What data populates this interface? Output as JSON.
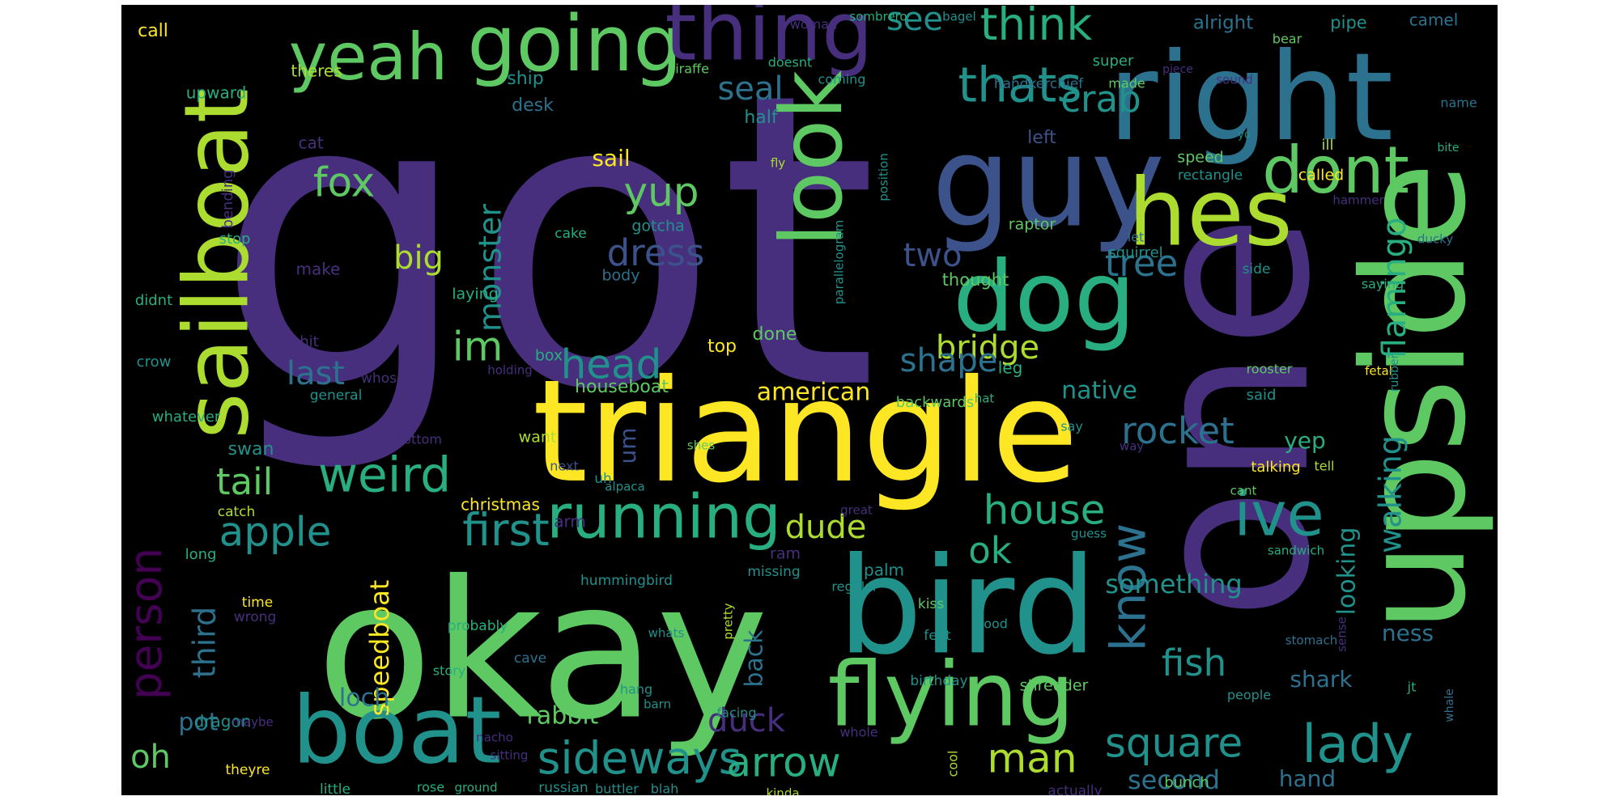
{
  "palette": {
    "background": "#000000",
    "purple": "#472f7d",
    "blue": "#3b528b",
    "steel": "#2c728e",
    "teal": "#21918c",
    "green": "#28ae80",
    "lime": "#5ec962",
    "yellowgreen": "#addc30",
    "yellow": "#fde725",
    "darkpurple": "#440154"
  },
  "words": [
    {
      "text": "got",
      "color": "purple"
    },
    {
      "text": "one",
      "color": "purple"
    },
    {
      "text": "triangle",
      "color": "yellow"
    },
    {
      "text": "okay",
      "color": "lime"
    },
    {
      "text": "right",
      "color": "steel"
    },
    {
      "text": "guy",
      "color": "blue"
    },
    {
      "text": "bird",
      "color": "teal"
    },
    {
      "text": "upside",
      "color": "lime"
    },
    {
      "text": "sailboat",
      "color": "yellowgreen"
    },
    {
      "text": "going",
      "color": "lime"
    },
    {
      "text": "thing",
      "color": "purple"
    },
    {
      "text": "yeah",
      "color": "lime"
    },
    {
      "text": "dog",
      "color": "green"
    },
    {
      "text": "hes",
      "color": "yellowgreen"
    },
    {
      "text": "look",
      "color": "lime"
    },
    {
      "text": "boat",
      "color": "teal"
    },
    {
      "text": "flying",
      "color": "lime"
    },
    {
      "text": "running",
      "color": "green"
    },
    {
      "text": "dont",
      "color": "lime"
    },
    {
      "text": "think",
      "color": "green"
    },
    {
      "text": "thats",
      "color": "teal"
    },
    {
      "text": "know",
      "color": "steel"
    },
    {
      "text": "lady",
      "color": "teal"
    },
    {
      "text": "person",
      "color": "darkpurple"
    },
    {
      "text": "ive",
      "color": "teal"
    },
    {
      "text": "weird",
      "color": "green"
    },
    {
      "text": "sideways",
      "color": "teal"
    },
    {
      "text": "first",
      "color": "teal"
    },
    {
      "text": "apple",
      "color": "teal"
    },
    {
      "text": "house",
      "color": "green"
    },
    {
      "text": "square",
      "color": "teal"
    },
    {
      "text": "arrow",
      "color": "green"
    },
    {
      "text": "man",
      "color": "yellowgreen"
    },
    {
      "text": "rocket",
      "color": "steel"
    },
    {
      "text": "head",
      "color": "teal"
    },
    {
      "text": "monster",
      "color": "teal"
    },
    {
      "text": "fox",
      "color": "lime"
    },
    {
      "text": "crab",
      "color": "teal"
    },
    {
      "text": "dress",
      "color": "blue"
    },
    {
      "text": "yup",
      "color": "lime"
    },
    {
      "text": "tree",
      "color": "steel"
    },
    {
      "text": "bridge",
      "color": "yellowgreen"
    },
    {
      "text": "shape",
      "color": "steel"
    },
    {
      "text": "flamingo",
      "color": "green"
    },
    {
      "text": "walking",
      "color": "teal"
    },
    {
      "text": "im",
      "color": "lime"
    },
    {
      "text": "big",
      "color": "yellowgreen"
    },
    {
      "text": "last",
      "color": "steel"
    },
    {
      "text": "tail",
      "color": "lime"
    },
    {
      "text": "seal",
      "color": "steel"
    },
    {
      "text": "see",
      "color": "teal"
    },
    {
      "text": "dude",
      "color": "yellowgreen"
    },
    {
      "text": "ok",
      "color": "green"
    },
    {
      "text": "fish",
      "color": "teal"
    },
    {
      "text": "duck",
      "color": "purple"
    },
    {
      "text": "two",
      "color": "blue"
    },
    {
      "text": "oh",
      "color": "lime"
    },
    {
      "text": "third",
      "color": "steel"
    },
    {
      "text": "speedboat",
      "color": "yellow"
    },
    {
      "text": "something",
      "color": "teal"
    },
    {
      "text": "second",
      "color": "steel"
    },
    {
      "text": "looking",
      "color": "teal"
    },
    {
      "text": "rabbit",
      "color": "lime"
    },
    {
      "text": "native",
      "color": "teal"
    },
    {
      "text": "american",
      "color": "yellow"
    },
    {
      "text": "sail",
      "color": "yellow"
    },
    {
      "text": "loch",
      "color": "steel"
    },
    {
      "text": "pot",
      "color": "steel"
    },
    {
      "text": "back",
      "color": "steel"
    },
    {
      "text": "um",
      "color": "blue"
    },
    {
      "text": "ness",
      "color": "steel"
    },
    {
      "text": "hand",
      "color": "steel"
    },
    {
      "text": "shark",
      "color": "steel"
    },
    {
      "text": "yep",
      "color": "green"
    },
    {
      "text": "houseboat",
      "color": "lime"
    },
    {
      "text": "christmas",
      "color": "yellow"
    },
    {
      "text": "swan",
      "color": "teal"
    },
    {
      "text": "desk",
      "color": "steel"
    },
    {
      "text": "ship",
      "color": "teal"
    },
    {
      "text": "half",
      "color": "teal"
    },
    {
      "text": "left",
      "color": "blue"
    },
    {
      "text": "top",
      "color": "yellow"
    },
    {
      "text": "done",
      "color": "lime"
    },
    {
      "text": "palm",
      "color": "teal"
    },
    {
      "text": "leg",
      "color": "green"
    },
    {
      "text": "dragon",
      "color": "teal"
    },
    {
      "text": "call",
      "color": "yellow"
    },
    {
      "text": "theres",
      "color": "yellowgreen"
    },
    {
      "text": "upward",
      "color": "green"
    },
    {
      "text": "cat",
      "color": "purple"
    },
    {
      "text": "bending",
      "color": "purple"
    },
    {
      "text": "stop",
      "color": "green"
    },
    {
      "text": "didnt",
      "color": "green"
    },
    {
      "text": "hit",
      "color": "purple"
    },
    {
      "text": "crow",
      "color": "teal"
    },
    {
      "text": "general",
      "color": "teal"
    },
    {
      "text": "whos",
      "color": "purple"
    },
    {
      "text": "whatever",
      "color": "green"
    },
    {
      "text": "catch",
      "color": "yellowgreen"
    },
    {
      "text": "long",
      "color": "green"
    },
    {
      "text": "time",
      "color": "yellow"
    },
    {
      "text": "wrong",
      "color": "purple"
    },
    {
      "text": "make",
      "color": "purple"
    },
    {
      "text": "arm",
      "color": "purple"
    },
    {
      "text": "cake",
      "color": "green"
    },
    {
      "text": "gotcha",
      "color": "teal"
    },
    {
      "text": "body",
      "color": "steel"
    },
    {
      "text": "laying",
      "color": "green"
    },
    {
      "text": "box",
      "color": "green"
    },
    {
      "text": "holding",
      "color": "purple"
    },
    {
      "text": "want",
      "color": "yellowgreen"
    },
    {
      "text": "bottom",
      "color": "purple"
    },
    {
      "text": "next",
      "color": "blue"
    },
    {
      "text": "uh",
      "color": "teal"
    },
    {
      "text": "alpaca",
      "color": "teal"
    },
    {
      "text": "shes",
      "color": "lime"
    },
    {
      "text": "ram",
      "color": "purple"
    },
    {
      "text": "missing",
      "color": "teal"
    },
    {
      "text": "hummingbird",
      "color": "teal"
    },
    {
      "text": "probably",
      "color": "green"
    },
    {
      "text": "story",
      "color": "green"
    },
    {
      "text": "cave",
      "color": "steel"
    },
    {
      "text": "hang",
      "color": "teal"
    },
    {
      "text": "barn",
      "color": "teal"
    },
    {
      "text": "whats",
      "color": "teal"
    },
    {
      "text": "pretty",
      "color": "yellowgreen"
    },
    {
      "text": "facing",
      "color": "teal"
    },
    {
      "text": "maybe",
      "color": "purple"
    },
    {
      "text": "nacho",
      "color": "purple"
    },
    {
      "text": "sitting",
      "color": "purple"
    },
    {
      "text": "theyre",
      "color": "yellow"
    },
    {
      "text": "little",
      "color": "green"
    },
    {
      "text": "rose",
      "color": "green"
    },
    {
      "text": "ground",
      "color": "green"
    },
    {
      "text": "russian",
      "color": "teal"
    },
    {
      "text": "buttler",
      "color": "teal"
    },
    {
      "text": "blah",
      "color": "teal"
    },
    {
      "text": "kinda",
      "color": "yellowgreen"
    },
    {
      "text": "whole",
      "color": "purple"
    },
    {
      "text": "cool",
      "color": "yellowgreen"
    },
    {
      "text": "actually",
      "color": "purple"
    },
    {
      "text": "shredder",
      "color": "lime"
    },
    {
      "text": "birthday",
      "color": "teal"
    },
    {
      "text": "feet",
      "color": "teal"
    },
    {
      "text": "kiss",
      "color": "lime"
    },
    {
      "text": "good",
      "color": "teal"
    },
    {
      "text": "regular",
      "color": "teal"
    },
    {
      "text": "great",
      "color": "purple"
    },
    {
      "text": "backwards",
      "color": "lime"
    },
    {
      "text": "hat",
      "color": "green"
    },
    {
      "text": "say",
      "color": "teal"
    },
    {
      "text": "way",
      "color": "purple"
    },
    {
      "text": "talking",
      "color": "yellow"
    },
    {
      "text": "tell",
      "color": "yellowgreen"
    },
    {
      "text": "cant",
      "color": "lime"
    },
    {
      "text": "guess",
      "color": "teal"
    },
    {
      "text": "sandwich",
      "color": "green"
    },
    {
      "text": "stomach",
      "color": "steel"
    },
    {
      "text": "sense",
      "color": "purple"
    },
    {
      "text": "people",
      "color": "teal"
    },
    {
      "text": "bunch",
      "color": "lime"
    },
    {
      "text": "jt",
      "color": "green"
    },
    {
      "text": "whale",
      "color": "steel"
    },
    {
      "text": "fetal",
      "color": "yellow"
    },
    {
      "text": "rubber",
      "color": "teal"
    },
    {
      "text": "rooster",
      "color": "lime"
    },
    {
      "text": "said",
      "color": "teal"
    },
    {
      "text": "saying",
      "color": "green"
    },
    {
      "text": "side",
      "color": "teal"
    },
    {
      "text": "squirrel",
      "color": "teal"
    },
    {
      "text": "let",
      "color": "steel"
    },
    {
      "text": "raptor",
      "color": "lime"
    },
    {
      "text": "thought",
      "color": "lime"
    },
    {
      "text": "parallelogram",
      "color": "teal"
    },
    {
      "text": "position",
      "color": "teal"
    },
    {
      "text": "fly",
      "color": "yellowgreen"
    },
    {
      "text": "speed",
      "color": "lime"
    },
    {
      "text": "rectangle",
      "color": "teal"
    },
    {
      "text": "called",
      "color": "yellow"
    },
    {
      "text": "hammer",
      "color": "purple"
    },
    {
      "text": "ducky",
      "color": "steel"
    },
    {
      "text": "ill",
      "color": "yellowgreen"
    },
    {
      "text": "yo",
      "color": "teal"
    },
    {
      "text": "bite",
      "color": "green"
    },
    {
      "text": "name",
      "color": "steel"
    },
    {
      "text": "sound",
      "color": "purple"
    },
    {
      "text": "made",
      "color": "lime"
    },
    {
      "text": "handkerchief",
      "color": "steel"
    },
    {
      "text": "coming",
      "color": "teal"
    },
    {
      "text": "doesnt",
      "color": "green"
    },
    {
      "text": "giraffe",
      "color": "lime"
    },
    {
      "text": "woman",
      "color": "purple"
    },
    {
      "text": "sombrero",
      "color": "green"
    },
    {
      "text": "bagel",
      "color": "teal"
    },
    {
      "text": "bear",
      "color": "lime"
    },
    {
      "text": "alright",
      "color": "steel"
    },
    {
      "text": "pipe",
      "color": "teal"
    },
    {
      "text": "camel",
      "color": "steel"
    },
    {
      "text": "super",
      "color": "green"
    },
    {
      "text": "piece",
      "color": "purple"
    }
  ]
}
